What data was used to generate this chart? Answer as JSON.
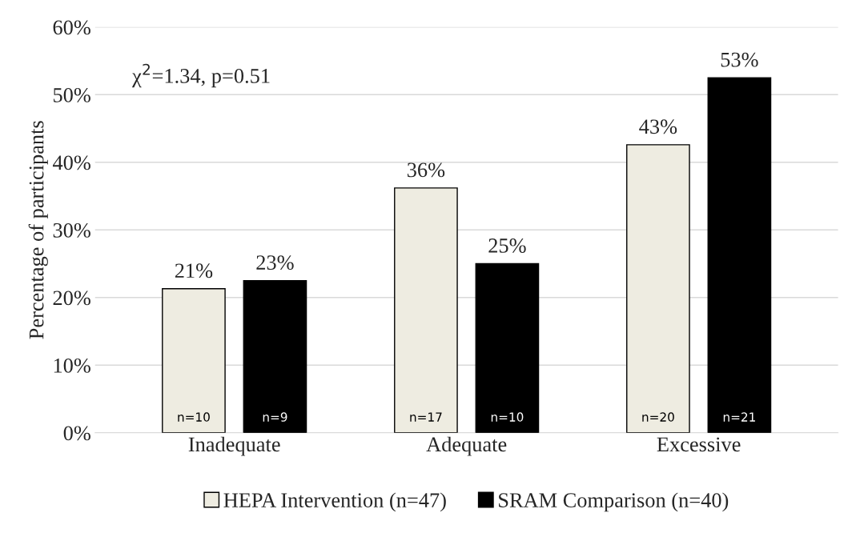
{
  "chart_data": {
    "type": "bar",
    "ylabel": "Percentage of participants",
    "categories": [
      "Inadequate",
      "Adequate",
      "Excessive"
    ],
    "series": [
      {
        "name": "HEPA Intervention (n=47)",
        "color": "#eeece1",
        "values": [
          21.3,
          36.2,
          42.6
        ],
        "value_labels": [
          "21%",
          "36%",
          "43%"
        ]
      },
      {
        "name": "SRAM Comparison (n=40)",
        "color": "#000000",
        "values": [
          22.5,
          25.0,
          52.5
        ],
        "value_labels": [
          "23%",
          "25%",
          "53%"
        ]
      }
    ],
    "ylim": [
      0,
      60
    ],
    "yticks": [
      {
        "value": 0,
        "label": "0%"
      },
      {
        "value": 10,
        "label": "10%"
      },
      {
        "value": 20,
        "label": "20%"
      },
      {
        "value": 30,
        "label": "30%"
      },
      {
        "value": 40,
        "label": "40%"
      },
      {
        "value": 50,
        "label": "50%"
      },
      {
        "value": 60,
        "label": "60%"
      }
    ],
    "annotations": [
      "χ$^{2}$=1.34, p=0.51",
      "n=10",
      "n=9",
      "n=17",
      "n=10",
      "n=20",
      "n=21"
    ],
    "grid": "y",
    "legend": "bottom"
  }
}
